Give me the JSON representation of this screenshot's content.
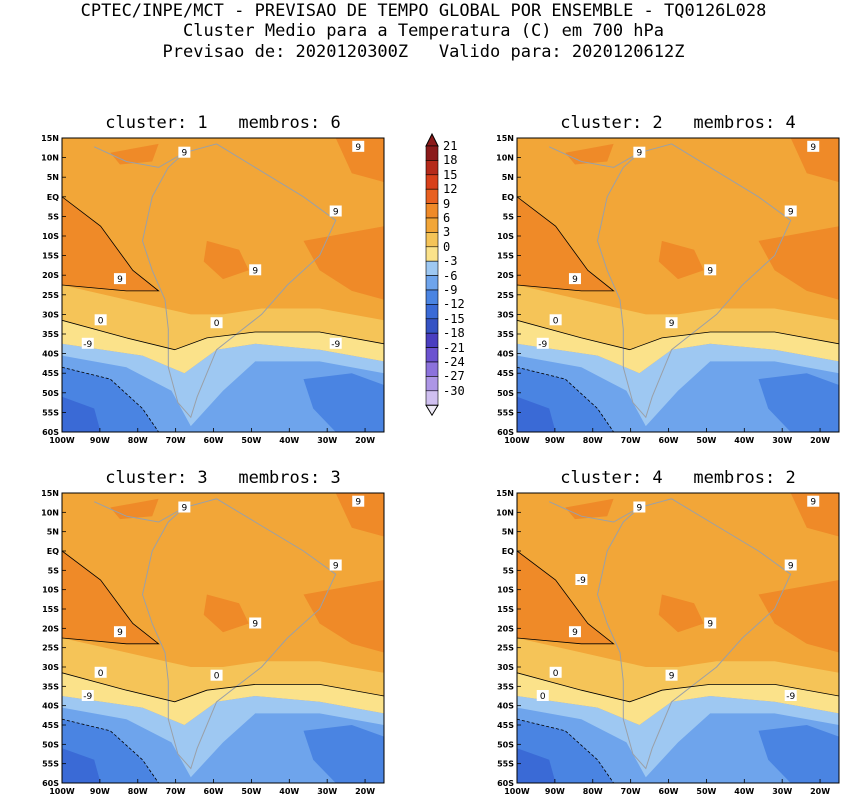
{
  "header": {
    "line1": "CPTEC/INPE/MCT - PREVISAO DE TEMPO GLOBAL POR ENSEMBLE - TQ0126L028",
    "line2": "Cluster Medio para a Temperatura (C) em 700 hPa",
    "line3": "Previsao de: 2020120300Z   Valido para: 2020120612Z"
  },
  "axes": {
    "lat_labels": [
      "15N",
      "10N",
      "5N",
      "EQ",
      "5S",
      "10S",
      "15S",
      "20S",
      "25S",
      "30S",
      "35S",
      "40S",
      "45S",
      "50S",
      "55S",
      "60S"
    ],
    "lon_labels": [
      "100W",
      "90W",
      "80W",
      "70W",
      "60W",
      "50W",
      "40W",
      "30W",
      "20W"
    ]
  },
  "colorbar": {
    "levels": [
      "21",
      "18",
      "15",
      "12",
      "9",
      "6",
      "3",
      "0",
      "-3",
      "-6",
      "-9",
      "-12",
      "-15",
      "-18",
      "-21",
      "-24",
      "-27",
      "-30"
    ],
    "colors": [
      "#8b1a1a",
      "#b52a1a",
      "#d8401a",
      "#e86020",
      "#ef8a28",
      "#f2a638",
      "#f5c458",
      "#fbe28a",
      "#9ec8f2",
      "#6ea4ec",
      "#4a84e2",
      "#3a6ad6",
      "#3553c4",
      "#4a3ec0",
      "#6b52d0",
      "#8c72dc",
      "#ad96e6",
      "#cfbff0"
    ]
  },
  "panels": [
    {
      "title": "cluster: 1   membros: 6",
      "contour_labels": [
        "9",
        "9",
        "9",
        "9",
        "9",
        "0",
        "0",
        "-9",
        "-9"
      ]
    },
    {
      "title": "cluster: 2   membros: 4",
      "contour_labels": [
        "9",
        "9",
        "9",
        "9",
        "9",
        "9",
        "0",
        "-9"
      ]
    },
    {
      "title": "cluster: 3   membros: 3",
      "contour_labels": [
        "9",
        "9",
        "9",
        "9",
        "9",
        "0",
        "0",
        "-9"
      ]
    },
    {
      "title": "cluster: 4   membros: 2",
      "contour_labels": [
        "9",
        "9",
        "9",
        "9",
        "9",
        "9",
        "0",
        "0",
        "-9",
        "-9"
      ]
    }
  ]
}
